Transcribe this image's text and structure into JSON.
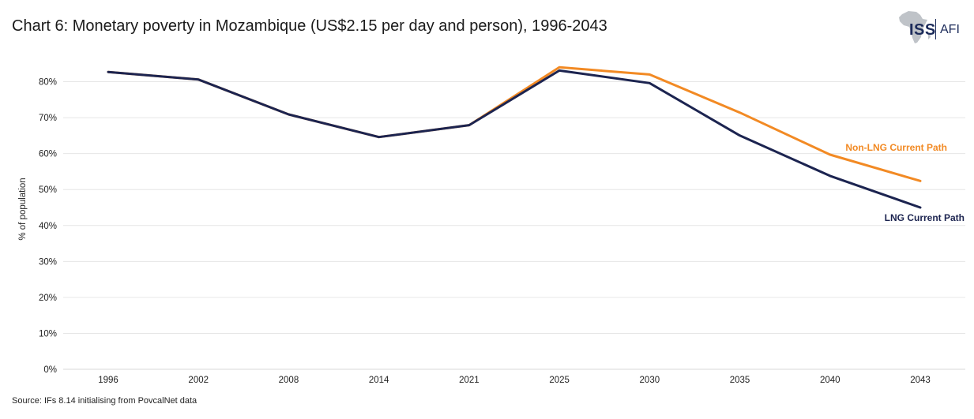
{
  "title": "Chart 6: Monetary poverty in Mozambique (US$2.15 per day and person), 1996-2043",
  "source": "Source: IFs 8.14 initialising from PovcalNet data",
  "logo": {
    "primary": "ISS",
    "secondary": "AFI",
    "icon": "africa-map-icon"
  },
  "chart_data": {
    "type": "line",
    "categories": [
      "1996",
      "2002",
      "2008",
      "2014",
      "2021",
      "2025",
      "2030",
      "2035",
      "2040",
      "2043"
    ],
    "ylabel": "% of population",
    "xlabel": "",
    "ylim": [
      0,
      85
    ],
    "yticks": [
      0,
      10,
      20,
      30,
      40,
      50,
      60,
      70,
      80
    ],
    "ytick_labels": [
      "0%",
      "10%",
      "20%",
      "30%",
      "40%",
      "50%",
      "60%",
      "70%",
      "80%"
    ],
    "grid": "horizontal",
    "series": [
      {
        "name": "Non-LNG Current Path",
        "color": "#f28a24",
        "values": [
          82.7,
          80.6,
          70.9,
          64.6,
          67.9,
          84.0,
          82.0,
          71.4,
          59.7,
          52.4
        ]
      },
      {
        "name": "LNG Current Path",
        "color": "#1c2450",
        "values": [
          82.7,
          80.6,
          70.9,
          64.6,
          67.9,
          83.1,
          79.6,
          65.0,
          53.8,
          45.0
        ]
      }
    ]
  }
}
